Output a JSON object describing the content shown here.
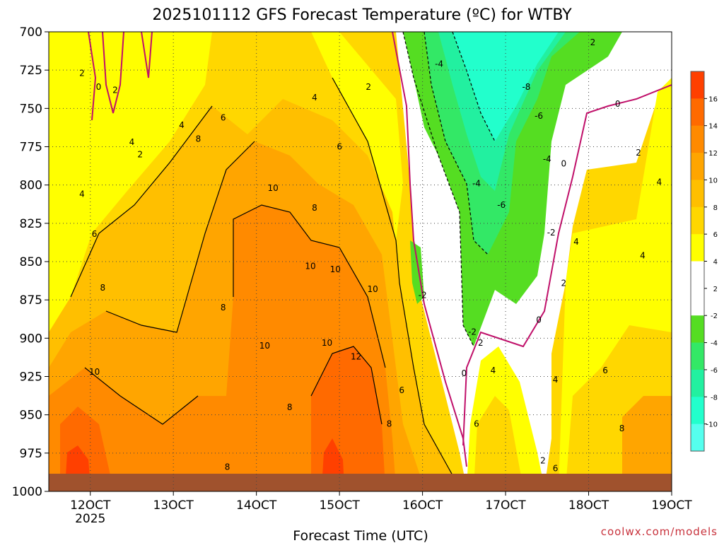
{
  "chart_data": {
    "type": "contour",
    "title": "2025101112 GFS Forecast Temperature (ºC) for WTBY",
    "xlabel": "Forecast Time (UTC)",
    "ylabel": "",
    "credit": "coolwx.com/models",
    "x_axis": {
      "range_days": [
        11.5,
        19.0
      ],
      "ticks": [
        {
          "value": 12,
          "label": "12OCT",
          "sublabel": "2025"
        },
        {
          "value": 13,
          "label": "13OCT"
        },
        {
          "value": 14,
          "label": "14OCT"
        },
        {
          "value": 15,
          "label": "15OCT"
        },
        {
          "value": 16,
          "label": "16OCT"
        },
        {
          "value": 17,
          "label": "17OCT"
        },
        {
          "value": 18,
          "label": "18OCT"
        },
        {
          "value": 19,
          "label": "19OCT"
        }
      ]
    },
    "y_axis": {
      "range": [
        700,
        1000
      ],
      "inverted": true,
      "ticks": [
        700,
        725,
        750,
        775,
        800,
        825,
        850,
        875,
        900,
        925,
        950,
        975,
        1000
      ]
    },
    "grid": true,
    "colorbar": {
      "labels": [
        "16",
        "14",
        "12",
        "10",
        "8",
        "6",
        "4",
        "2",
        "-2",
        "-4",
        "-6",
        "-8",
        "-10"
      ],
      "colors": [
        "#ff4000",
        "#ff6a00",
        "#ff8a00",
        "#ffa500",
        "#ffbf00",
        "#ffd700",
        "#ffff00",
        "#ffffff",
        "#ffffff",
        "#55dd22",
        "#33e866",
        "#22f0a0",
        "#22ffcc",
        "#55ffee"
      ]
    },
    "contour_labels": [
      {
        "day": 11.9,
        "p": 727,
        "v": "2"
      },
      {
        "day": 12.1,
        "p": 736,
        "v": "0"
      },
      {
        "day": 12.3,
        "p": 738,
        "v": "2"
      },
      {
        "day": 12.5,
        "p": 772,
        "v": "4"
      },
      {
        "day": 12.6,
        "p": 780,
        "v": "2"
      },
      {
        "day": 13.1,
        "p": 761,
        "v": "4"
      },
      {
        "day": 11.9,
        "p": 806,
        "v": "4"
      },
      {
        "day": 12.05,
        "p": 832,
        "v": "6"
      },
      {
        "day": 12.15,
        "p": 867,
        "v": "8"
      },
      {
        "day": 12.05,
        "p": 922,
        "v": "10"
      },
      {
        "day": 13.6,
        "p": 756,
        "v": "6"
      },
      {
        "day": 13.3,
        "p": 770,
        "v": "8"
      },
      {
        "day": 14.2,
        "p": 802,
        "v": "10"
      },
      {
        "day": 14.7,
        "p": 743,
        "v": "4"
      },
      {
        "day": 15.0,
        "p": 775,
        "v": "6"
      },
      {
        "day": 14.7,
        "p": 815,
        "v": "8"
      },
      {
        "day": 14.65,
        "p": 853,
        "v": "10"
      },
      {
        "day": 14.95,
        "p": 855,
        "v": "10"
      },
      {
        "day": 15.4,
        "p": 868,
        "v": "10"
      },
      {
        "day": 15.35,
        "p": 736,
        "v": "2"
      },
      {
        "day": 13.6,
        "p": 880,
        "v": "8"
      },
      {
        "day": 14.1,
        "p": 905,
        "v": "10"
      },
      {
        "day": 14.85,
        "p": 903,
        "v": "10"
      },
      {
        "day": 15.2,
        "p": 912,
        "v": "12"
      },
      {
        "day": 14.4,
        "p": 945,
        "v": "8"
      },
      {
        "day": 13.65,
        "p": 984,
        "v": "8"
      },
      {
        "day": 15.6,
        "p": 956,
        "v": "8"
      },
      {
        "day": 15.75,
        "p": 934,
        "v": "6"
      },
      {
        "day": 16.0,
        "p": 872,
        "v": "-2"
      },
      {
        "day": 16.2,
        "p": 721,
        "v": "-4"
      },
      {
        "day": 17.25,
        "p": 736,
        "v": "-8"
      },
      {
        "day": 17.4,
        "p": 755,
        "v": "-6"
      },
      {
        "day": 17.5,
        "p": 783,
        "v": "-4"
      },
      {
        "day": 17.7,
        "p": 786,
        "v": "0"
      },
      {
        "day": 18.35,
        "p": 747,
        "v": "0"
      },
      {
        "day": 18.05,
        "p": 707,
        "v": "2"
      },
      {
        "day": 18.6,
        "p": 779,
        "v": "2"
      },
      {
        "day": 18.85,
        "p": 798,
        "v": "4"
      },
      {
        "day": 16.65,
        "p": 799,
        "v": "-4"
      },
      {
        "day": 16.95,
        "p": 813,
        "v": "-6"
      },
      {
        "day": 17.55,
        "p": 831,
        "v": "-2"
      },
      {
        "day": 17.85,
        "p": 837,
        "v": "4"
      },
      {
        "day": 18.65,
        "p": 846,
        "v": "4"
      },
      {
        "day": 17.7,
        "p": 864,
        "v": "2"
      },
      {
        "day": 17.4,
        "p": 888,
        "v": "0"
      },
      {
        "day": 16.6,
        "p": 896,
        "v": "-2"
      },
      {
        "day": 16.7,
        "p": 903,
        "v": "2"
      },
      {
        "day": 16.5,
        "p": 923,
        "v": "0"
      },
      {
        "day": 16.85,
        "p": 921,
        "v": "4"
      },
      {
        "day": 17.6,
        "p": 927,
        "v": "4"
      },
      {
        "day": 18.2,
        "p": 921,
        "v": "6"
      },
      {
        "day": 16.65,
        "p": 956,
        "v": "6"
      },
      {
        "day": 17.45,
        "p": 980,
        "v": "2"
      },
      {
        "day": 17.6,
        "p": 985,
        "v": "6"
      },
      {
        "day": 18.4,
        "p": 959,
        "v": "8"
      }
    ]
  }
}
